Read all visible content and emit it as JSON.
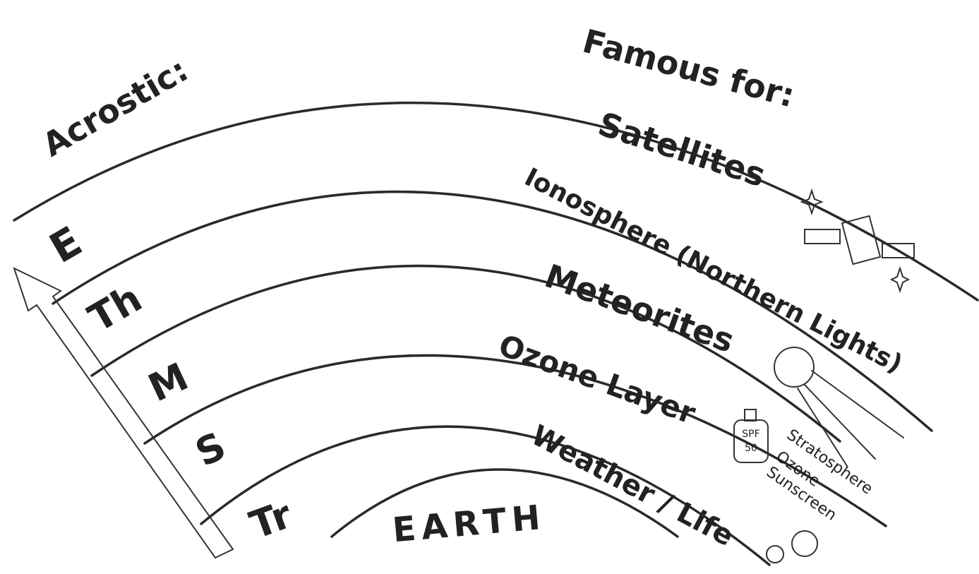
{
  "headings": {
    "acrostic": "Acrostic:",
    "famous_for": "Famous for:"
  },
  "layers": [
    {
      "acrostic": "E",
      "famous_for": "Satellites"
    },
    {
      "acrostic": "Th",
      "famous_for": "Ionosphere (Northern Lights)"
    },
    {
      "acrostic": "M",
      "famous_for": "Meteorites"
    },
    {
      "acrostic": "S",
      "famous_for": "Ozone Layer"
    },
    {
      "acrostic": "Tr",
      "famous_for": "Weather / Life"
    }
  ],
  "center": "EARTH",
  "sunscreen": {
    "brand": "SPF",
    "factor": "50"
  },
  "notes": [
    "Stratosphere",
    "Ozone",
    "Sunscreen"
  ]
}
